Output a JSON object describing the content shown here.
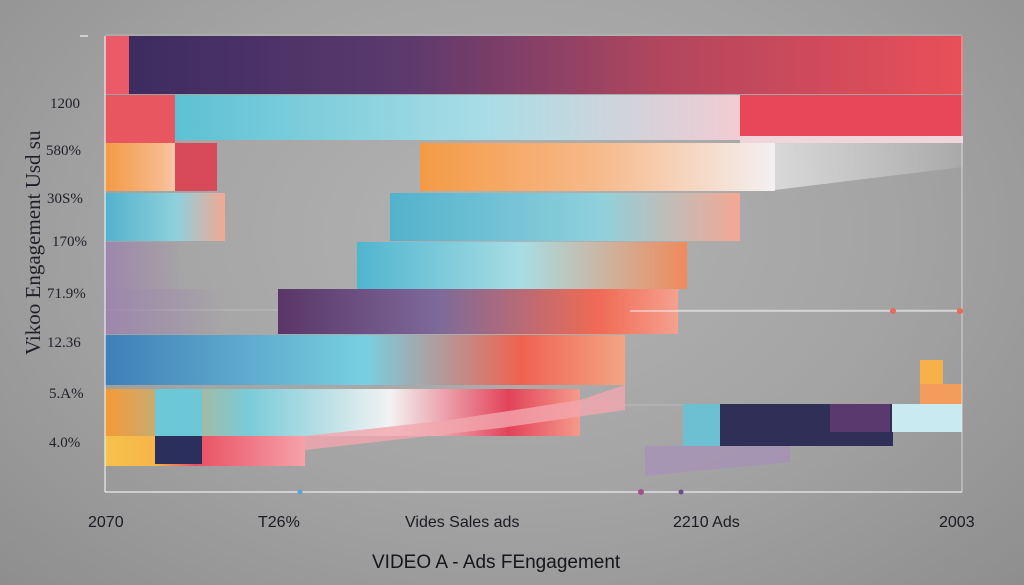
{
  "chart_data": {
    "type": "bar",
    "ytitle": "Vikoo Engagement Usd su",
    "xtitle": "VIDEO A - Ads FEngagement",
    "ytick_labels": [
      "1200",
      "580%",
      "30S%",
      "170%",
      "71.9%",
      "12.36",
      "5.A%",
      "4.0%"
    ],
    "xtick_labels": [
      "2070",
      "T26%",
      "Vides Sales ads",
      "2210 Ads",
      "2003"
    ],
    "grid": true,
    "colors": {
      "purple": "#5b3670",
      "navy": "#2e3158",
      "red": "#e24d5a",
      "cyan": "#67c3d5",
      "orange": "#f49848",
      "yellow": "#f6be4a",
      "blue": "#4d93c4",
      "pink": "#f0a2b0"
    }
  }
}
